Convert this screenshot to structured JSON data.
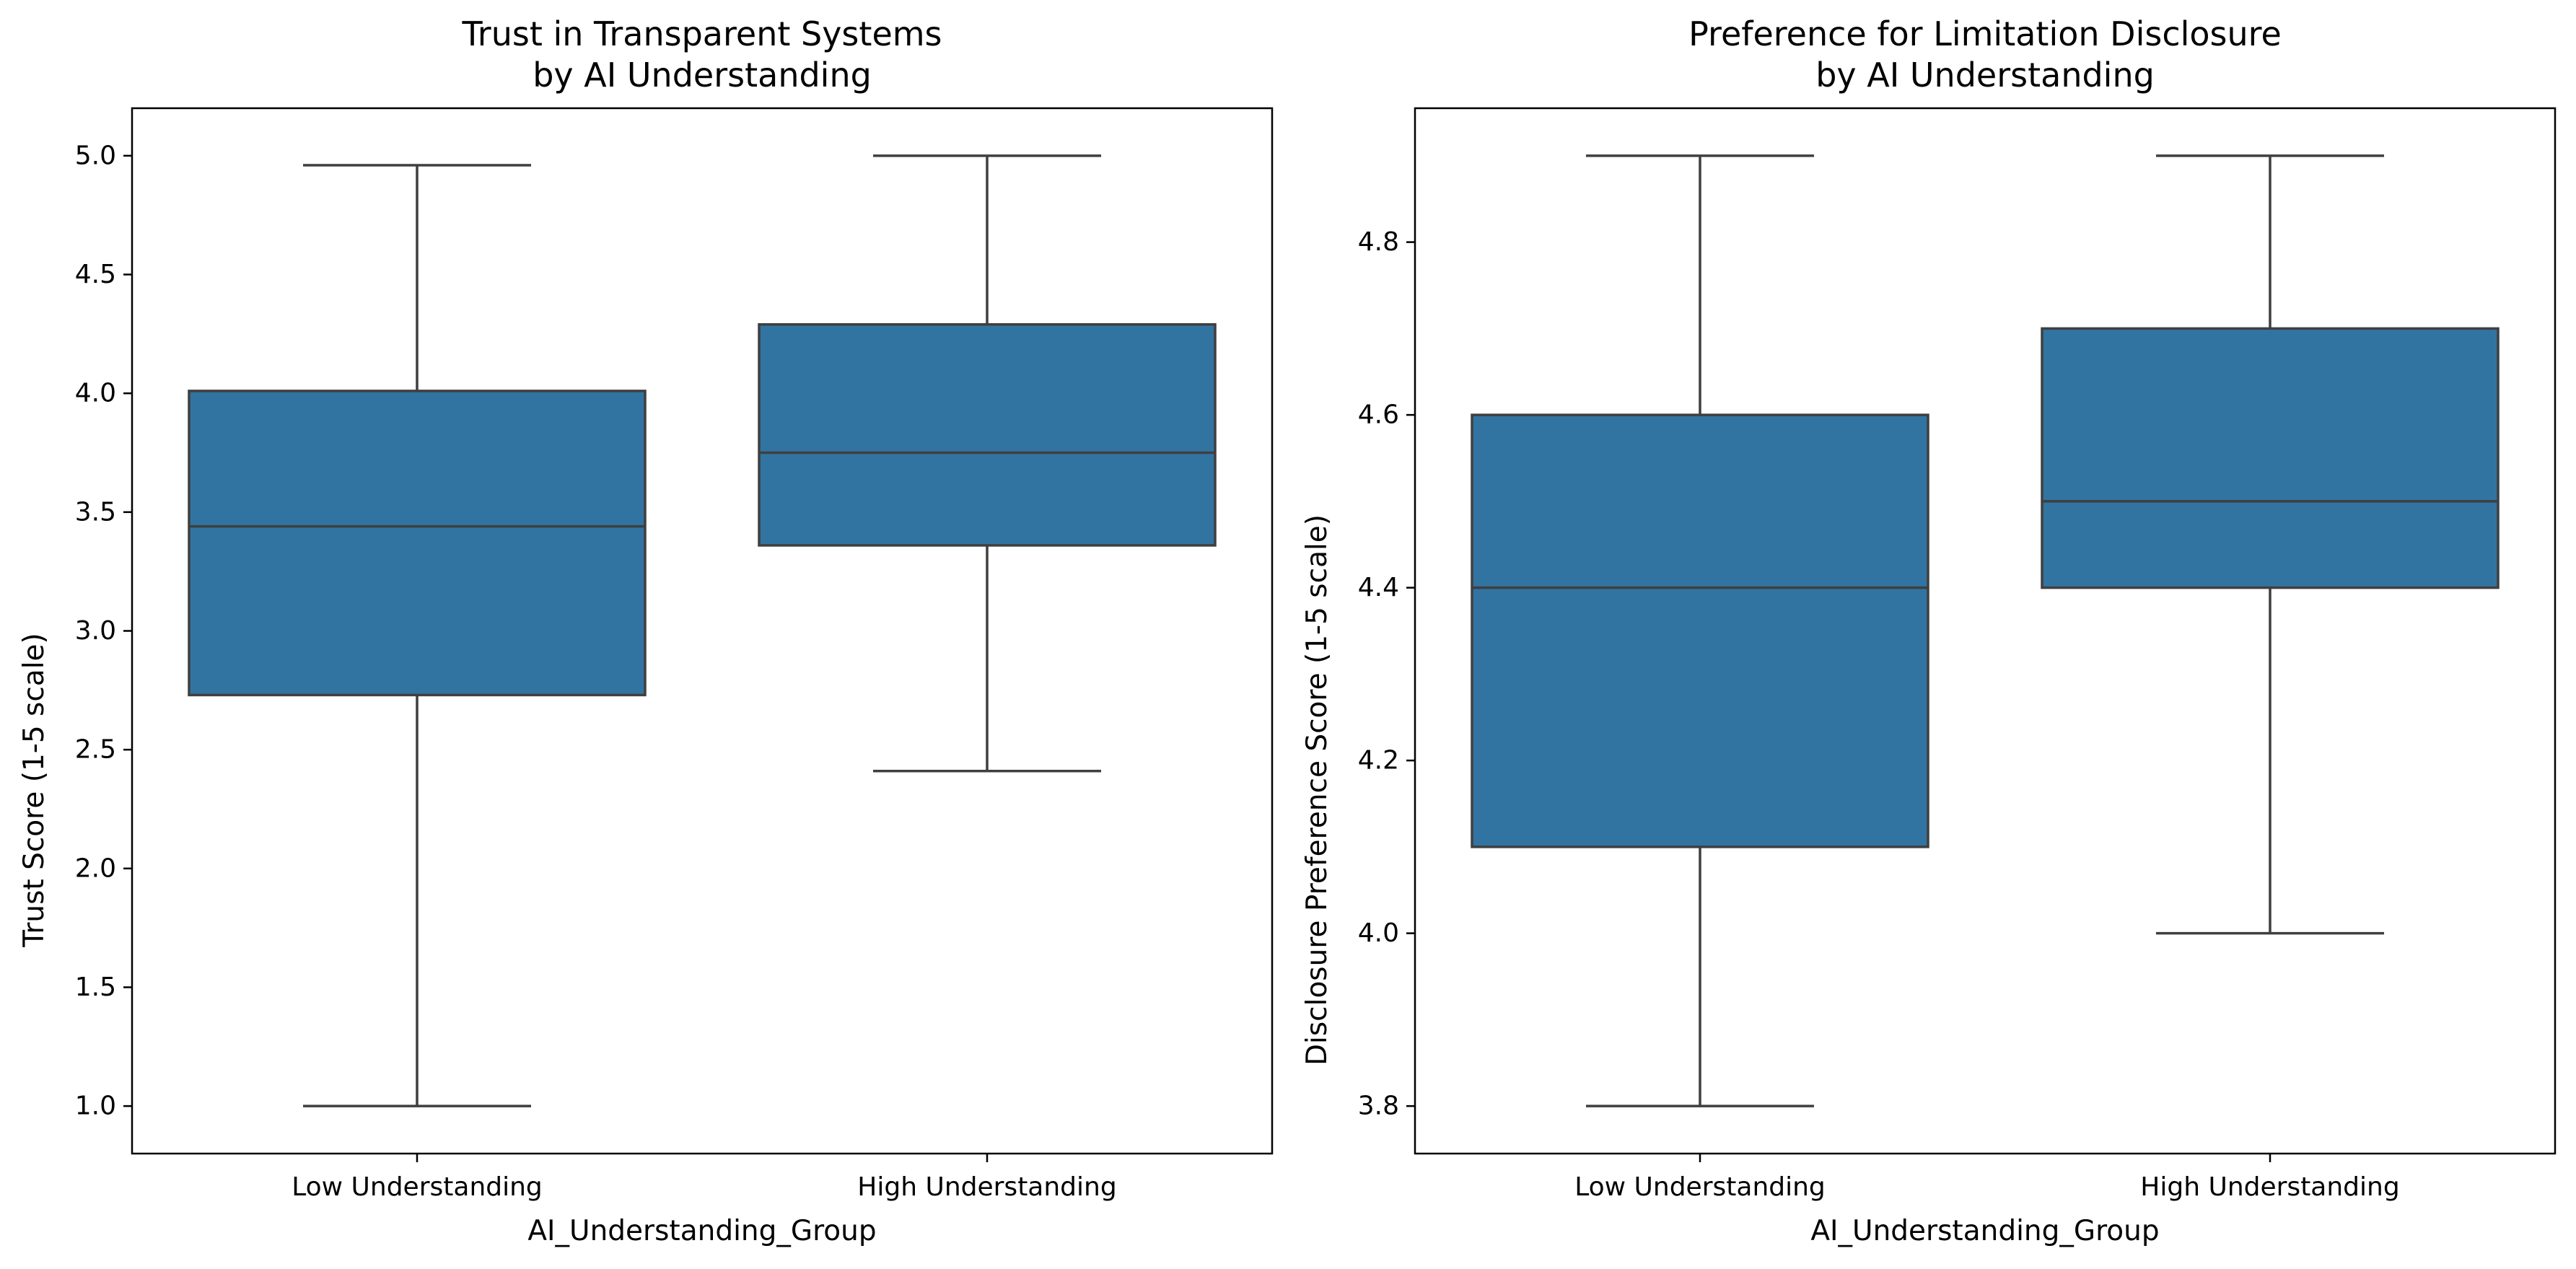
{
  "chart_data": [
    {
      "type": "box",
      "title": [
        "Trust in Transparent Systems",
        "by AI Understanding"
      ],
      "xlabel": "AI_Understanding_Group",
      "ylabel": "Trust Score (1-5 scale)",
      "categories": [
        "Low Understanding",
        "High Understanding"
      ],
      "ylim": [
        0.8,
        5.2
      ],
      "yticks": [
        1.0,
        1.5,
        2.0,
        2.5,
        3.0,
        3.5,
        4.0,
        4.5,
        5.0
      ],
      "ytick_labels": [
        "1.0",
        "1.5",
        "2.0",
        "2.5",
        "3.0",
        "3.5",
        "4.0",
        "4.5",
        "5.0"
      ],
      "grid": false,
      "boxes": [
        {
          "category": "Low Understanding",
          "whisker_low": 1.0,
          "q1": 2.73,
          "median": 3.44,
          "q3": 4.01,
          "whisker_high": 4.96
        },
        {
          "category": "High Understanding",
          "whisker_low": 2.41,
          "q1": 3.36,
          "median": 3.75,
          "q3": 4.29,
          "whisker_high": 5.0
        }
      ]
    },
    {
      "type": "box",
      "title": [
        "Preference for Limitation Disclosure",
        "by AI Understanding"
      ],
      "xlabel": "AI_Understanding_Group",
      "ylabel": "Disclosure Preference Score (1-5 scale)",
      "categories": [
        "Low Understanding",
        "High Understanding"
      ],
      "ylim": [
        3.745,
        4.955
      ],
      "yticks": [
        3.8,
        4.0,
        4.2,
        4.4,
        4.6,
        4.8
      ],
      "ytick_labels": [
        "3.8",
        "4.0",
        "4.2",
        "4.4",
        "4.6",
        "4.8"
      ],
      "grid": false,
      "boxes": [
        {
          "category": "Low Understanding",
          "whisker_low": 3.8,
          "q1": 4.1,
          "median": 4.4,
          "q3": 4.6,
          "whisker_high": 4.9
        },
        {
          "category": "High Understanding",
          "whisker_low": 4.0,
          "q1": 4.4,
          "median": 4.5,
          "q3": 4.7,
          "whisker_high": 4.9
        }
      ]
    }
  ],
  "colors": {
    "box_fill": "#3274a1",
    "line": "#3f3f3f",
    "axis": "#000000",
    "background": "#ffffff"
  }
}
